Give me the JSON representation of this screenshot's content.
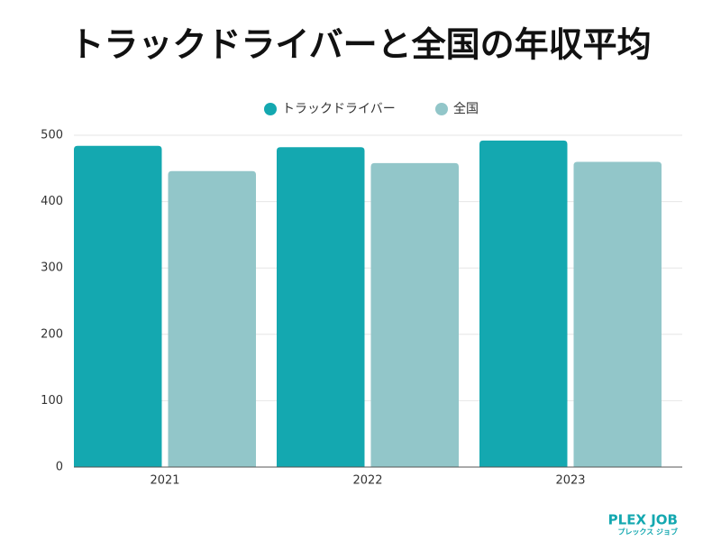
{
  "chart_data": {
    "type": "bar",
    "title": "トラックドライバーと全国の年収平均",
    "categories": [
      "2021",
      "2022",
      "2023"
    ],
    "series": [
      {
        "name": "トラックドライバー",
        "color": "#14a8b0",
        "values": [
          484,
          482,
          492
        ]
      },
      {
        "name": "全国",
        "color": "#92c6c9",
        "values": [
          446,
          458,
          460
        ]
      }
    ],
    "ylim": [
      0,
      500
    ],
    "yticks": [
      0,
      100,
      200,
      300,
      400,
      500
    ],
    "grid": true,
    "legend": "top"
  },
  "logo": {
    "name": "PLEX JOB",
    "subtitle": "プレックス ジョブ"
  }
}
